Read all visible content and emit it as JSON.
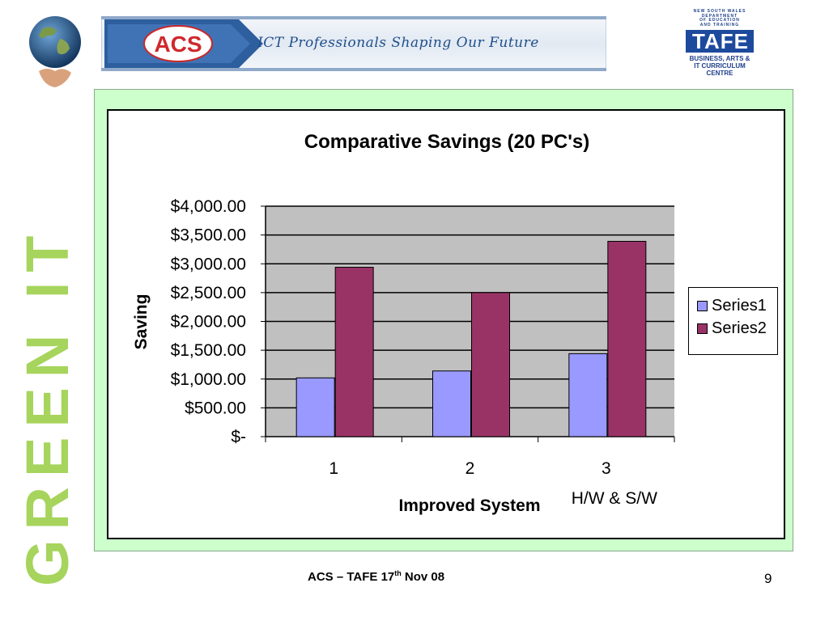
{
  "header": {
    "tagline": "ICT Professionals Shaping Our Future",
    "acs_logo_text": "ACS",
    "tafe": {
      "org_lines": [
        "NEW SOUTH WALES",
        "DEPARTMENT",
        "OF EDUCATION",
        "AND TRAINING"
      ],
      "wordmark": "TAFE",
      "centre_lines": [
        "BUSINESS, ARTS &",
        "IT CURRICULUM",
        "CENTRE"
      ]
    }
  },
  "side_title": "GREEN IT",
  "footer": {
    "text": "ACS – TAFE 17",
    "sup": "th",
    "tail": " Nov 08",
    "page": "9"
  },
  "colors": {
    "series1": "#9999ff",
    "series2": "#993366",
    "plot_bg": "#c0c0c0",
    "side_title": "#a6d45c",
    "panel": "#ccffcc"
  },
  "chart_data": {
    "type": "bar",
    "title": "Comparative Savings (20 PC's)",
    "xlabel": "Improved System",
    "ylabel": "Saving",
    "categories": [
      "1",
      "2",
      "3"
    ],
    "annotations": [
      {
        "category": "3",
        "text": "H/W & S/W"
      }
    ],
    "ylim": [
      0,
      4000
    ],
    "yticks": [
      0,
      500,
      1000,
      1500,
      2000,
      2500,
      3000,
      3500,
      4000
    ],
    "ytick_labels": [
      "$-",
      "$500.00",
      "$1,000.00",
      "$1,500.00",
      "$2,000.00",
      "$2,500.00",
      "$3,000.00",
      "$3,500.00",
      "$4,000.00"
    ],
    "grid": true,
    "legend": "right",
    "series": [
      {
        "name": "Series1",
        "values": [
          1020,
          1140,
          1440
        ]
      },
      {
        "name": "Series2",
        "values": [
          2940,
          2500,
          3390
        ]
      }
    ]
  }
}
